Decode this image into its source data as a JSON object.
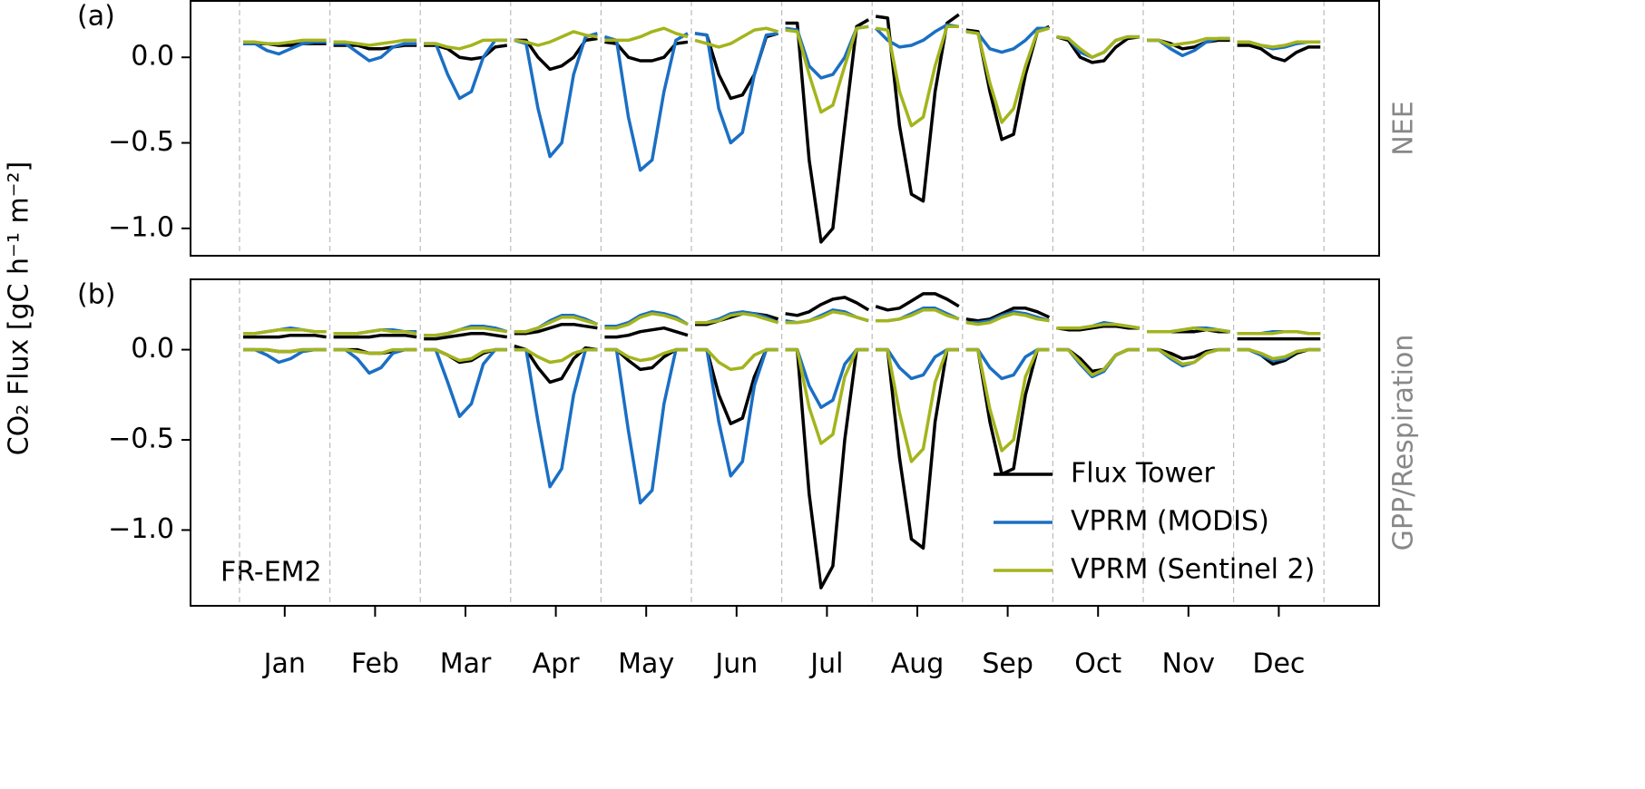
{
  "chart_data": {
    "type": "line",
    "y_label": "CO₂ Flux [gC h⁻¹ m⁻²]",
    "annotation": "FR-EM2",
    "categories": [
      "Jan",
      "Feb",
      "Mar",
      "Apr",
      "May",
      "Jun",
      "Jul",
      "Aug",
      "Sep",
      "Oct",
      "Nov",
      "Dec"
    ],
    "panels": [
      {
        "label": "(a)",
        "side_label": "NEE",
        "keys": [
          "nee"
        ],
        "ylim": [
          -1.16,
          0.33
        ],
        "yticks": [
          {
            "value": -1.0,
            "label": "−1.0"
          },
          {
            "value": -0.5,
            "label": "−0.5"
          },
          {
            "value": 0.0,
            "label": "0.0"
          }
        ]
      },
      {
        "label": "(b)",
        "side_label": "GPP/Respiration",
        "keys": [
          "respiration",
          "gpp"
        ],
        "ylim": [
          -1.42,
          0.39
        ],
        "legend": true,
        "yticks": [
          {
            "value": -1.0,
            "label": "−1.0"
          },
          {
            "value": -0.5,
            "label": "−0.5"
          },
          {
            "value": 0.0,
            "label": "0.0"
          }
        ]
      }
    ],
    "series": [
      {
        "name": "Flux Tower",
        "color": "#000000",
        "nee": [
          [
            0.08,
            0.08,
            0.08,
            0.07,
            0.07,
            0.08,
            0.08,
            0.08
          ],
          [
            0.07,
            0.07,
            0.07,
            0.05,
            0.05,
            0.06,
            0.07,
            0.07
          ],
          [
            0.07,
            0.07,
            0.05,
            0.0,
            -0.01,
            0.0,
            0.06,
            0.07
          ],
          [
            0.1,
            0.1,
            0.0,
            -0.07,
            -0.05,
            0.0,
            0.1,
            0.11
          ],
          [
            0.09,
            0.08,
            0.0,
            -0.02,
            -0.02,
            0.0,
            0.08,
            0.09
          ],
          [
            0.14,
            0.13,
            -0.1,
            -0.24,
            -0.22,
            -0.1,
            0.12,
            0.14
          ],
          [
            0.2,
            0.2,
            -0.6,
            -1.08,
            -1.0,
            -0.4,
            0.18,
            0.22
          ],
          [
            0.24,
            0.23,
            -0.4,
            -0.8,
            -0.84,
            -0.2,
            0.2,
            0.25
          ],
          [
            0.16,
            0.15,
            -0.2,
            -0.48,
            -0.45,
            -0.1,
            0.15,
            0.18
          ],
          [
            0.12,
            0.1,
            0.0,
            -0.03,
            -0.02,
            0.06,
            0.11,
            0.12
          ],
          [
            0.1,
            0.1,
            0.08,
            0.05,
            0.06,
            0.09,
            0.1,
            0.1
          ],
          [
            0.07,
            0.07,
            0.05,
            0.0,
            -0.02,
            0.03,
            0.06,
            0.06
          ]
        ],
        "respiration": [
          [
            0.07,
            0.07,
            0.07,
            0.07,
            0.08,
            0.08,
            0.08,
            0.07
          ],
          [
            0.07,
            0.07,
            0.07,
            0.07,
            0.08,
            0.08,
            0.08,
            0.07
          ],
          [
            0.06,
            0.06,
            0.07,
            0.08,
            0.09,
            0.09,
            0.08,
            0.07
          ],
          [
            0.09,
            0.09,
            0.1,
            0.12,
            0.14,
            0.14,
            0.13,
            0.12
          ],
          [
            0.07,
            0.07,
            0.08,
            0.1,
            0.11,
            0.12,
            0.1,
            0.08
          ],
          [
            0.14,
            0.14,
            0.16,
            0.18,
            0.2,
            0.2,
            0.19,
            0.17
          ],
          [
            0.2,
            0.19,
            0.21,
            0.25,
            0.28,
            0.29,
            0.26,
            0.22
          ],
          [
            0.24,
            0.22,
            0.23,
            0.27,
            0.31,
            0.31,
            0.28,
            0.24
          ],
          [
            0.17,
            0.16,
            0.17,
            0.2,
            0.23,
            0.23,
            0.21,
            0.18
          ],
          [
            0.12,
            0.11,
            0.11,
            0.12,
            0.13,
            0.13,
            0.12,
            0.12
          ],
          [
            0.1,
            0.1,
            0.1,
            0.1,
            0.1,
            0.11,
            0.1,
            0.1
          ],
          [
            0.06,
            0.06,
            0.06,
            0.06,
            0.06,
            0.06,
            0.06,
            0.06
          ]
        ],
        "gpp": [
          [
            0,
            0,
            0,
            -0.01,
            -0.01,
            0,
            0,
            0
          ],
          [
            0,
            0,
            0,
            -0.02,
            -0.02,
            -0.01,
            0,
            0
          ],
          [
            0,
            0,
            -0.03,
            -0.07,
            -0.06,
            -0.02,
            0,
            0
          ],
          [
            0.02,
            0,
            -0.1,
            -0.18,
            -0.16,
            -0.05,
            0.01,
            0
          ],
          [
            0,
            0,
            -0.06,
            -0.11,
            -0.1,
            -0.04,
            0,
            0
          ],
          [
            0,
            0,
            -0.25,
            -0.41,
            -0.38,
            -0.15,
            0,
            0
          ],
          [
            0,
            0,
            -0.8,
            -1.32,
            -1.2,
            -0.5,
            0,
            0
          ],
          [
            0,
            0,
            -0.6,
            -1.05,
            -1.1,
            -0.4,
            0,
            0
          ],
          [
            0,
            0,
            -0.4,
            -0.69,
            -0.66,
            -0.25,
            0,
            0
          ],
          [
            0,
            0,
            -0.05,
            -0.12,
            -0.11,
            -0.03,
            0,
            0
          ],
          [
            0,
            0,
            -0.02,
            -0.05,
            -0.04,
            -0.01,
            0,
            0
          ],
          [
            0,
            0,
            -0.03,
            -0.08,
            -0.06,
            -0.02,
            0,
            0
          ]
        ]
      },
      {
        "name": "VPRM (MODIS)",
        "color": "#1a6fc4",
        "nee": [
          [
            0.08,
            0.08,
            0.04,
            0.02,
            0.05,
            0.08,
            0.09,
            0.09
          ],
          [
            0.08,
            0.08,
            0.03,
            -0.02,
            0.0,
            0.06,
            0.08,
            0.08
          ],
          [
            0.08,
            0.08,
            -0.1,
            -0.24,
            -0.2,
            0.0,
            0.1,
            0.1
          ],
          [
            0.1,
            0.08,
            -0.3,
            -0.58,
            -0.5,
            -0.1,
            0.12,
            0.14
          ],
          [
            0.12,
            0.1,
            -0.35,
            -0.66,
            -0.6,
            -0.2,
            0.1,
            0.14
          ],
          [
            0.14,
            0.13,
            -0.3,
            -0.5,
            -0.44,
            -0.1,
            0.13,
            0.14
          ],
          [
            0.17,
            0.16,
            -0.05,
            -0.12,
            -0.1,
            0.0,
            0.17,
            0.18
          ],
          [
            0.17,
            0.1,
            0.06,
            0.07,
            0.1,
            0.15,
            0.19,
            0.18
          ],
          [
            0.15,
            0.14,
            0.05,
            0.03,
            0.05,
            0.1,
            0.17,
            0.17
          ],
          [
            0.12,
            0.11,
            0.03,
            0.0,
            0.03,
            0.1,
            0.12,
            0.12
          ],
          [
            0.1,
            0.1,
            0.05,
            0.01,
            0.04,
            0.09,
            0.11,
            0.11
          ],
          [
            0.09,
            0.09,
            0.07,
            0.05,
            0.06,
            0.08,
            0.09,
            0.09
          ]
        ],
        "respiration": [
          [
            0.09,
            0.09,
            0.1,
            0.11,
            0.12,
            0.11,
            0.1,
            0.1
          ],
          [
            0.09,
            0.09,
            0.09,
            0.1,
            0.11,
            0.11,
            0.1,
            0.1
          ],
          [
            0.08,
            0.08,
            0.09,
            0.11,
            0.13,
            0.13,
            0.12,
            0.1
          ],
          [
            0.1,
            0.1,
            0.12,
            0.16,
            0.19,
            0.19,
            0.17,
            0.14
          ],
          [
            0.13,
            0.13,
            0.15,
            0.19,
            0.21,
            0.2,
            0.18,
            0.14
          ],
          [
            0.15,
            0.15,
            0.17,
            0.2,
            0.21,
            0.2,
            0.18,
            0.15
          ],
          [
            0.16,
            0.15,
            0.16,
            0.19,
            0.22,
            0.21,
            0.18,
            0.16
          ],
          [
            0.16,
            0.16,
            0.17,
            0.2,
            0.23,
            0.23,
            0.2,
            0.17
          ],
          [
            0.15,
            0.15,
            0.16,
            0.19,
            0.21,
            0.2,
            0.18,
            0.16
          ],
          [
            0.12,
            0.12,
            0.12,
            0.13,
            0.15,
            0.14,
            0.13,
            0.12
          ],
          [
            0.1,
            0.1,
            0.1,
            0.11,
            0.12,
            0.12,
            0.11,
            0.1
          ],
          [
            0.09,
            0.09,
            0.09,
            0.1,
            0.1,
            0.1,
            0.09,
            0.09
          ]
        ],
        "gpp": [
          [
            0,
            0,
            -0.03,
            -0.07,
            -0.05,
            -0.01,
            0,
            0
          ],
          [
            0,
            0,
            -0.05,
            -0.13,
            -0.1,
            -0.02,
            0,
            0
          ],
          [
            0,
            0,
            -0.18,
            -0.37,
            -0.3,
            -0.08,
            0,
            0
          ],
          [
            0,
            0,
            -0.4,
            -0.76,
            -0.66,
            -0.25,
            0,
            0
          ],
          [
            0,
            0,
            -0.45,
            -0.85,
            -0.78,
            -0.3,
            0,
            0
          ],
          [
            0,
            0,
            -0.4,
            -0.7,
            -0.62,
            -0.2,
            0,
            0
          ],
          [
            0,
            0,
            -0.2,
            -0.32,
            -0.28,
            -0.08,
            0,
            0
          ],
          [
            0,
            0,
            -0.1,
            -0.16,
            -0.14,
            -0.04,
            0,
            0
          ],
          [
            0,
            0,
            -0.1,
            -0.16,
            -0.14,
            -0.04,
            0,
            0
          ],
          [
            0,
            0,
            -0.08,
            -0.15,
            -0.12,
            -0.03,
            0,
            0
          ],
          [
            0,
            0,
            -0.05,
            -0.09,
            -0.07,
            -0.02,
            0,
            0
          ],
          [
            0,
            0,
            -0.03,
            -0.06,
            -0.05,
            -0.01,
            0,
            0
          ]
        ]
      },
      {
        "name": "VPRM (Sentinel 2)",
        "color": "#a4b41c",
        "nee": [
          [
            0.09,
            0.09,
            0.08,
            0.08,
            0.09,
            0.1,
            0.1,
            0.1
          ],
          [
            0.09,
            0.09,
            0.08,
            0.07,
            0.08,
            0.09,
            0.1,
            0.1
          ],
          [
            0.08,
            0.08,
            0.06,
            0.05,
            0.07,
            0.1,
            0.1,
            0.1
          ],
          [
            0.1,
            0.09,
            0.07,
            0.09,
            0.12,
            0.15,
            0.13,
            0.12
          ],
          [
            0.1,
            0.1,
            0.1,
            0.12,
            0.15,
            0.17,
            0.14,
            0.12
          ],
          [
            0.1,
            0.08,
            0.06,
            0.08,
            0.12,
            0.16,
            0.17,
            0.15
          ],
          [
            0.16,
            0.15,
            -0.1,
            -0.32,
            -0.28,
            -0.05,
            0.17,
            0.18
          ],
          [
            0.17,
            0.16,
            -0.2,
            -0.4,
            -0.35,
            -0.05,
            0.18,
            0.18
          ],
          [
            0.15,
            0.14,
            -0.15,
            -0.38,
            -0.3,
            -0.05,
            0.15,
            0.17
          ],
          [
            0.12,
            0.11,
            0.05,
            0.0,
            0.03,
            0.1,
            0.12,
            0.12
          ],
          [
            0.1,
            0.1,
            0.07,
            0.08,
            0.09,
            0.11,
            0.11,
            0.11
          ],
          [
            0.09,
            0.09,
            0.07,
            0.06,
            0.07,
            0.09,
            0.09,
            0.09
          ]
        ],
        "respiration": [
          [
            0.09,
            0.09,
            0.1,
            0.11,
            0.11,
            0.11,
            0.1,
            0.1
          ],
          [
            0.09,
            0.09,
            0.09,
            0.1,
            0.11,
            0.1,
            0.1,
            0.09
          ],
          [
            0.08,
            0.08,
            0.09,
            0.11,
            0.12,
            0.12,
            0.11,
            0.1
          ],
          [
            0.1,
            0.1,
            0.12,
            0.15,
            0.18,
            0.18,
            0.16,
            0.14
          ],
          [
            0.12,
            0.12,
            0.14,
            0.18,
            0.2,
            0.19,
            0.17,
            0.14
          ],
          [
            0.15,
            0.15,
            0.16,
            0.19,
            0.2,
            0.19,
            0.17,
            0.15
          ],
          [
            0.15,
            0.15,
            0.16,
            0.18,
            0.21,
            0.2,
            0.18,
            0.16
          ],
          [
            0.16,
            0.16,
            0.17,
            0.19,
            0.22,
            0.22,
            0.19,
            0.17
          ],
          [
            0.15,
            0.14,
            0.15,
            0.18,
            0.2,
            0.19,
            0.17,
            0.16
          ],
          [
            0.12,
            0.12,
            0.12,
            0.13,
            0.14,
            0.14,
            0.13,
            0.12
          ],
          [
            0.1,
            0.1,
            0.1,
            0.11,
            0.12,
            0.11,
            0.11,
            0.1
          ],
          [
            0.09,
            0.09,
            0.09,
            0.09,
            0.1,
            0.1,
            0.09,
            0.09
          ]
        ],
        "gpp": [
          [
            0,
            0,
            0,
            -0.01,
            -0.01,
            0,
            0,
            0
          ],
          [
            0,
            0,
            -0.01,
            -0.02,
            -0.02,
            0,
            0,
            0
          ],
          [
            0,
            0,
            -0.03,
            -0.06,
            -0.05,
            -0.01,
            0,
            0
          ],
          [
            0,
            0,
            -0.04,
            -0.07,
            -0.06,
            -0.02,
            0,
            0
          ],
          [
            0,
            0,
            -0.04,
            -0.06,
            -0.05,
            -0.02,
            0,
            0
          ],
          [
            0,
            0,
            -0.07,
            -0.11,
            -0.1,
            -0.03,
            0,
            0
          ],
          [
            0,
            0,
            -0.32,
            -0.52,
            -0.47,
            -0.15,
            0,
            0
          ],
          [
            0,
            0,
            -0.35,
            -0.62,
            -0.55,
            -0.18,
            0,
            0
          ],
          [
            0,
            0,
            -0.33,
            -0.56,
            -0.5,
            -0.15,
            0,
            0
          ],
          [
            0,
            0,
            -0.07,
            -0.14,
            -0.11,
            -0.03,
            0,
            0
          ],
          [
            0,
            0,
            -0.04,
            -0.08,
            -0.07,
            -0.02,
            0,
            0
          ],
          [
            0,
            0,
            -0.02,
            -0.05,
            -0.04,
            -0.01,
            0,
            0
          ]
        ]
      }
    ]
  }
}
